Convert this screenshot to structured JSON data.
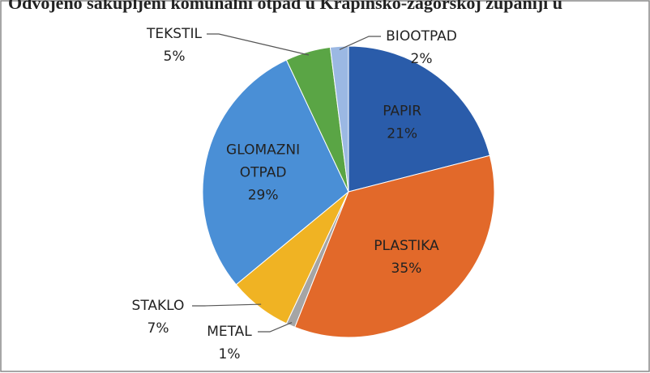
{
  "chart_data": {
    "type": "pie",
    "title": "Odvojeno sakupljeni komunalni otpad u Krapinsko-zagorskoj županiji u",
    "categories": [
      "PAPIR",
      "PLASTIKA",
      "METAL",
      "STAKLO",
      "GLOMAZNI OTPAD",
      "TEKSTIL",
      "BIOOTPAD"
    ],
    "values": [
      21,
      35,
      1,
      7,
      29,
      5,
      2
    ],
    "value_labels": [
      "21%",
      "35%",
      "1%",
      "7%",
      "29%",
      "5%",
      "2%"
    ],
    "colors": [
      "#2a5caa",
      "#e2692a",
      "#a5a5a5",
      "#f0b323",
      "#4a8fd6",
      "#5aa545",
      "#9bb8e3"
    ]
  }
}
